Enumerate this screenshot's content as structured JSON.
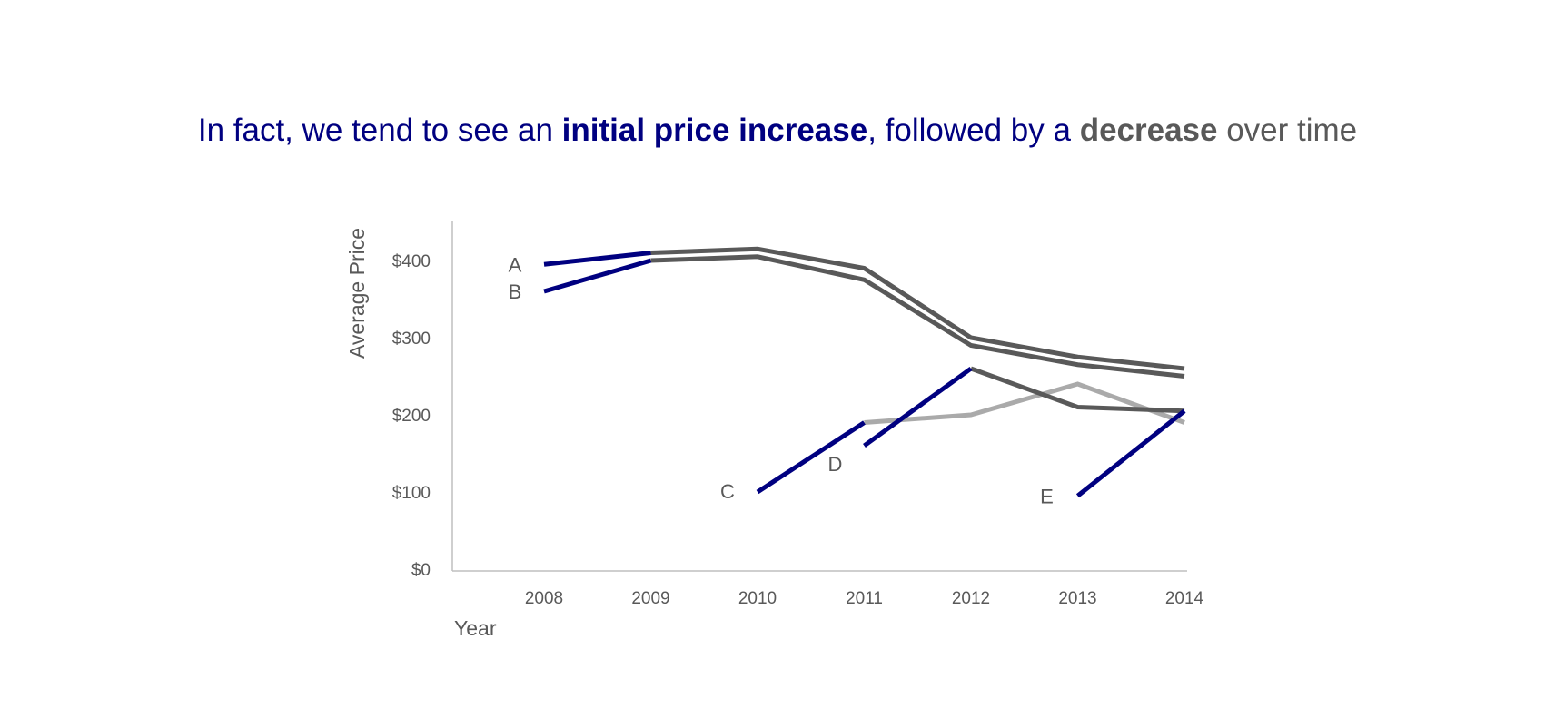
{
  "title": {
    "part1": "In fact, we tend to see an ",
    "part2": "initial price increase",
    "part3": ", followed by a ",
    "part4": "decrease",
    "part5": " over time"
  },
  "colors": {
    "highlight": "#000080",
    "dark_gray": "#595959",
    "light_gray": "#aaaaaa",
    "axis": "#bfbfbf"
  },
  "chart_data": {
    "type": "line",
    "title": "",
    "xlabel": "Year",
    "ylabel": "Average Price",
    "categories": [
      "2008",
      "2009",
      "2010",
      "2011",
      "2012",
      "2013",
      "2014"
    ],
    "yticks": [
      "$0",
      "$100",
      "$200",
      "$300",
      "$400"
    ],
    "ylim": [
      0,
      450
    ],
    "grid": false,
    "series": [
      {
        "name": "A",
        "values": [
          395,
          410,
          415,
          390,
          300,
          275,
          260
        ],
        "launch_color": "#000080",
        "rest_color": "#595959"
      },
      {
        "name": "B",
        "values": [
          360,
          400,
          405,
          375,
          290,
          265,
          250
        ],
        "launch_color": "#000080",
        "rest_color": "#595959"
      },
      {
        "name": "C",
        "values": [
          null,
          null,
          100,
          190,
          200,
          240,
          190
        ],
        "launch_color": "#000080",
        "rest_color": "#aaaaaa"
      },
      {
        "name": "D",
        "values": [
          null,
          null,
          null,
          160,
          260,
          210,
          205
        ],
        "launch_color": "#000080",
        "rest_color": "#595959"
      },
      {
        "name": "E",
        "values": [
          null,
          null,
          null,
          null,
          null,
          95,
          205
        ],
        "launch_color": "#000080",
        "rest_color": "#595959"
      }
    ]
  }
}
